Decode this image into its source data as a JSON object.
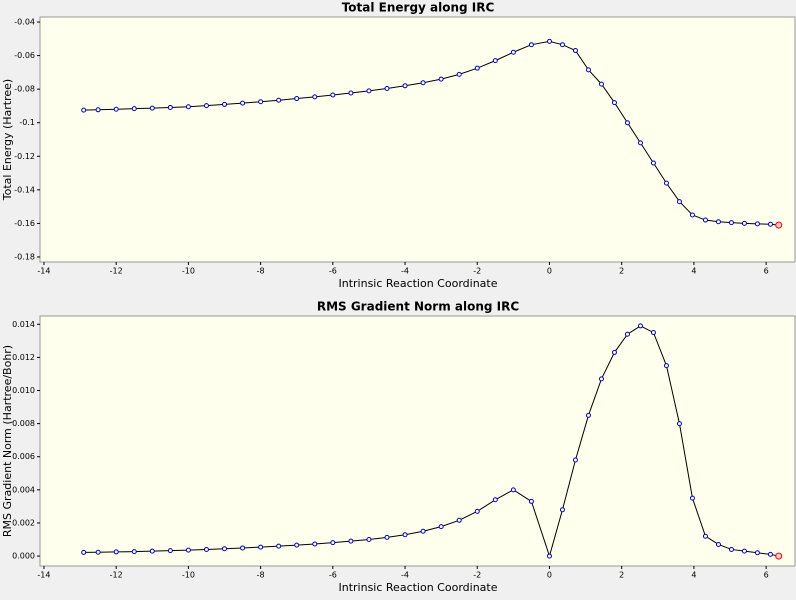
{
  "chart_data": [
    {
      "type": "line",
      "title": "Total Energy along IRC",
      "xlabel": "Intrinsic Reaction Coordinate",
      "ylabel": "Total Energy (Hartree)",
      "x": [
        -12.9,
        -12.5,
        -12,
        -11.5,
        -11,
        -10.5,
        -10,
        -9.5,
        -9,
        -8.5,
        -8,
        -7.5,
        -7,
        -6.5,
        -6,
        -5.5,
        -5,
        -4.5,
        -4,
        -3.5,
        -3,
        -2.5,
        -2,
        -1.5,
        -1,
        -0.5,
        0,
        0.36,
        0.72,
        1.08,
        1.44,
        1.8,
        2.16,
        2.52,
        2.88,
        3.24,
        3.6,
        3.96,
        4.32,
        4.68,
        5.04,
        5.4,
        5.76,
        6.12,
        6.35
      ],
      "values": [
        -0.0925,
        -0.0923,
        -0.092,
        -0.0916,
        -0.0913,
        -0.0909,
        -0.0905,
        -0.0898,
        -0.0891,
        -0.0883,
        -0.0875,
        -0.0866,
        -0.0856,
        -0.0846,
        -0.0835,
        -0.0823,
        -0.081,
        -0.0796,
        -0.078,
        -0.0762,
        -0.074,
        -0.0712,
        -0.0675,
        -0.063,
        -0.058,
        -0.0535,
        -0.0515,
        -0.0535,
        -0.057,
        -0.0685,
        -0.077,
        -0.088,
        -0.1,
        -0.112,
        -0.124,
        -0.136,
        -0.147,
        -0.155,
        -0.158,
        -0.159,
        -0.1595,
        -0.16,
        -0.1603,
        -0.1605,
        -0.161
      ],
      "line_color": "#000000",
      "marker_color": "#0000cc",
      "end_marker_color": "#ff0000",
      "xlim": [
        -14.11,
        6.8
      ],
      "ylim": [
        -0.183,
        -0.037
      ],
      "xticks": [
        -14,
        -12,
        -10,
        -8,
        -6,
        -4,
        -2,
        0,
        2,
        4,
        6
      ],
      "yticks": [
        -0.04,
        -0.06,
        -0.08,
        -0.1,
        -0.12,
        -0.14,
        -0.16,
        -0.18
      ]
    },
    {
      "type": "line",
      "title": "RMS Gradient Norm along IRC",
      "xlabel": "Intrinsic Reaction Coordinate",
      "ylabel": "RMS Gradient Norm (Hartree/Bohr)",
      "x": [
        -12.9,
        -12.5,
        -12,
        -11.5,
        -11,
        -10.5,
        -10,
        -9.5,
        -9,
        -8.5,
        -8,
        -7.5,
        -7,
        -6.5,
        -6,
        -5.5,
        -5,
        -4.5,
        -4,
        -3.5,
        -3,
        -2.5,
        -2,
        -1.5,
        -1,
        -0.5,
        0,
        0.36,
        0.72,
        1.08,
        1.44,
        1.8,
        2.16,
        2.52,
        2.88,
        3.24,
        3.6,
        3.96,
        4.32,
        4.68,
        5.04,
        5.4,
        5.76,
        6.12,
        6.35
      ],
      "values": [
        0.00022,
        0.00023,
        0.00025,
        0.00027,
        0.0003,
        0.00033,
        0.00036,
        0.0004,
        0.00044,
        0.00049,
        0.00054,
        0.0006,
        0.00066,
        0.00073,
        0.00081,
        0.0009,
        0.001,
        0.00113,
        0.00129,
        0.0015,
        0.00178,
        0.00216,
        0.0027,
        0.0034,
        0.004,
        0.0033,
        0,
        0.0028,
        0.0058,
        0.0085,
        0.0107,
        0.0123,
        0.0134,
        0.0139,
        0.0135,
        0.0115,
        0.008,
        0.0035,
        0.0012,
        0.0007,
        0.0004,
        0.0003,
        0.0002,
        0.0001,
        0
      ],
      "line_color": "#000000",
      "marker_color": "#0000cc",
      "end_marker_color": "#ff0000",
      "xlim": [
        -14.11,
        6.8
      ],
      "ylim": [
        -0.0006,
        0.0145
      ],
      "xticks": [
        -14,
        -12,
        -10,
        -8,
        -6,
        -4,
        -2,
        0,
        2,
        4,
        6
      ],
      "yticks": [
        {
          "value": 0,
          "label": "0.000"
        },
        {
          "value": 0.002,
          "label": "0.002"
        },
        {
          "value": 0.004,
          "label": "0.004"
        },
        {
          "value": 0.006,
          "label": "0.006"
        },
        {
          "value": 0.008,
          "label": "0.008"
        },
        {
          "value": 0.01,
          "label": "0.010"
        },
        {
          "value": 0.012,
          "label": "0.012"
        },
        {
          "value": 0.014,
          "label": "0.014"
        }
      ]
    }
  ]
}
